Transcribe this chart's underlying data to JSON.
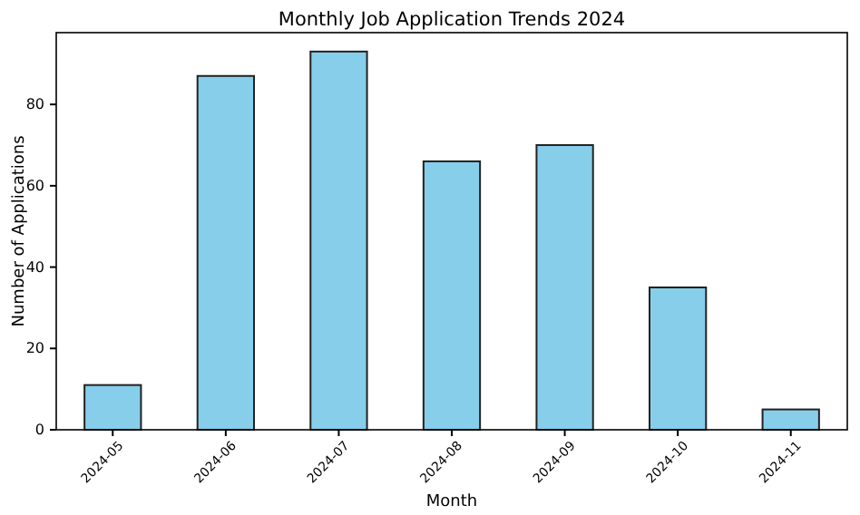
{
  "chart_data": {
    "type": "bar",
    "title": "Monthly Job Application Trends 2024",
    "xlabel": "Month",
    "ylabel": "Number of Applications",
    "categories": [
      "2024-05",
      "2024-06",
      "2024-07",
      "2024-08",
      "2024-09",
      "2024-10",
      "2024-11"
    ],
    "values": [
      11,
      87,
      93,
      66,
      70,
      35,
      5
    ],
    "color": "#87ceeb",
    "ylim": [
      0,
      97.65
    ],
    "yticks": [
      0,
      20,
      40,
      60,
      80
    ],
    "grid": false
  }
}
